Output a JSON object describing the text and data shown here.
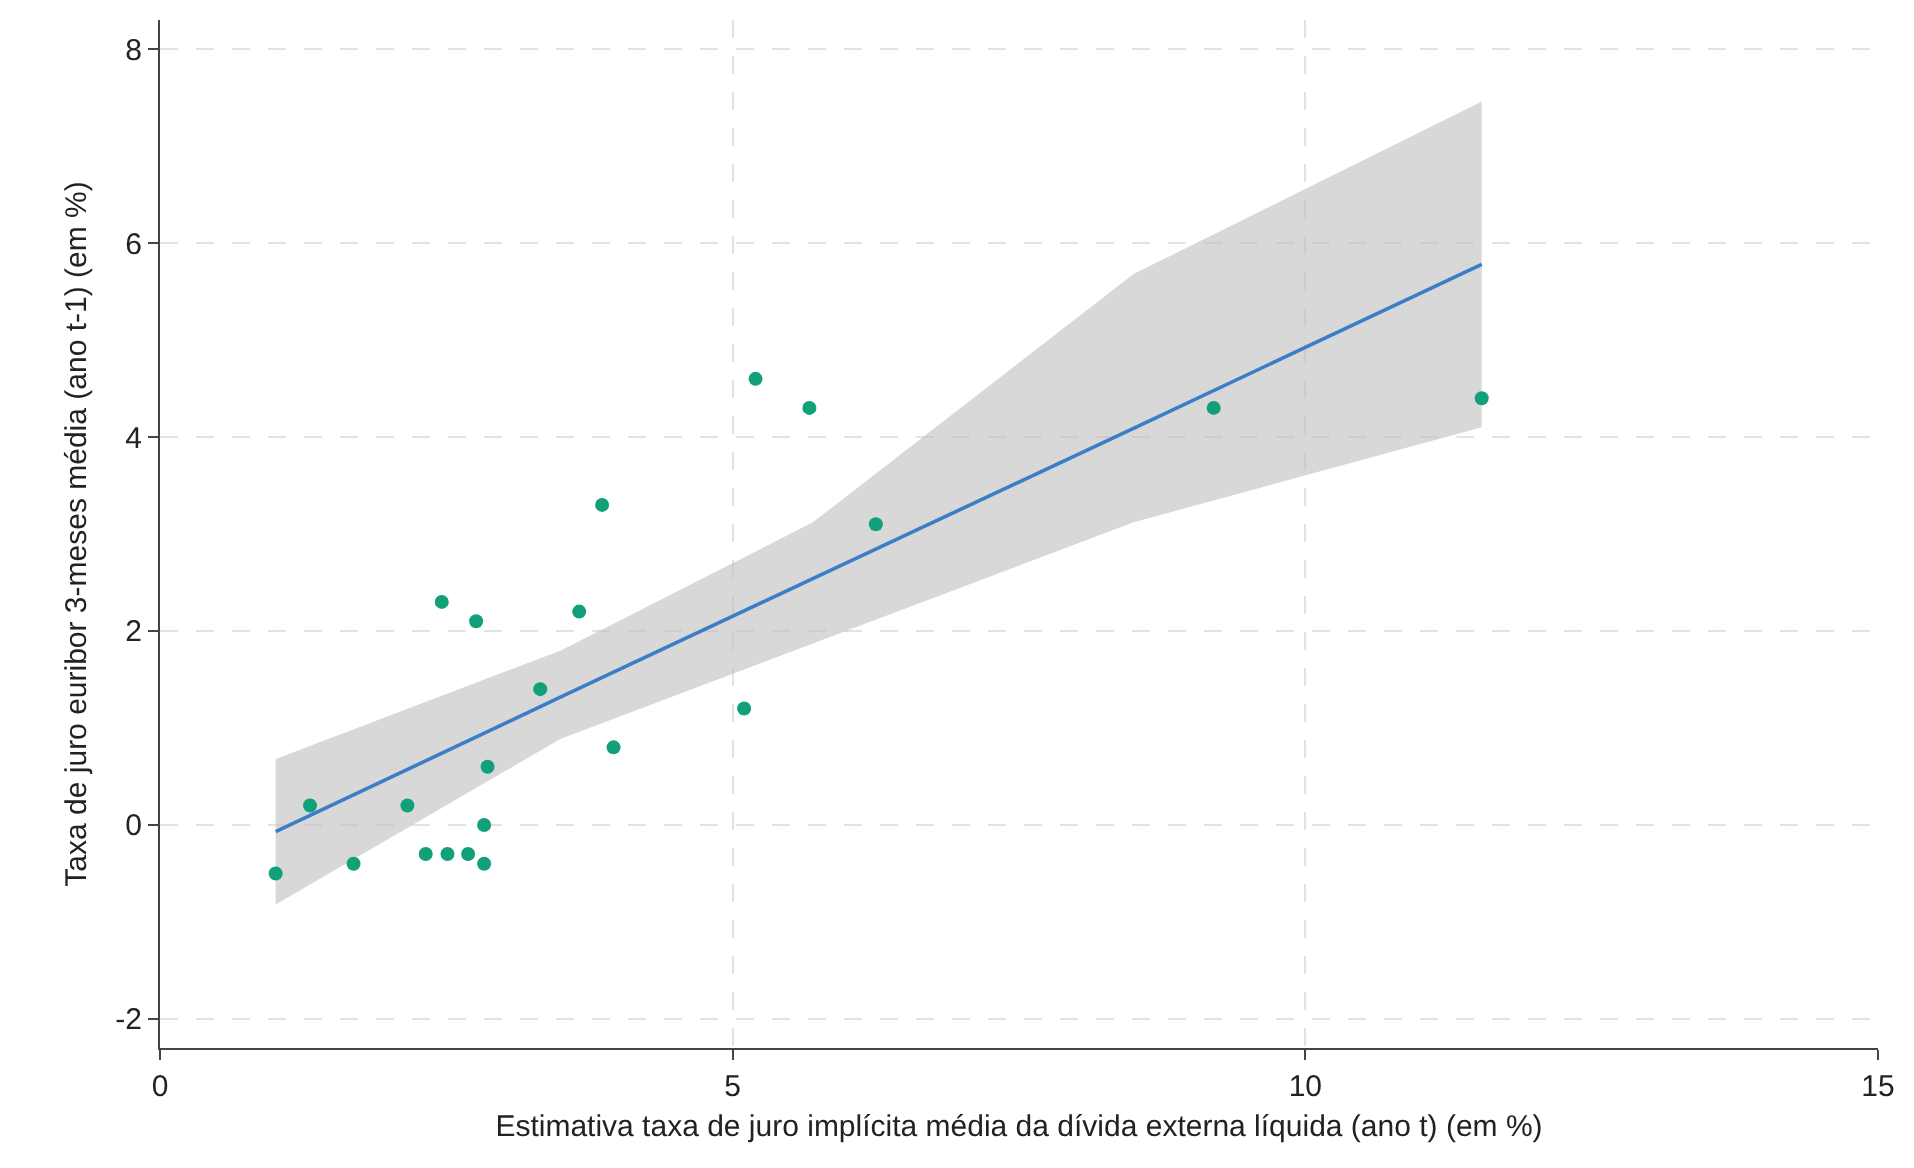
{
  "chart_data": {
    "type": "scatter",
    "xlabel": "Estimativa taxa de juro implícita média da dívida externa líquida (ano t) (em %)",
    "ylabel": "Taxa de juro euribor 3-meses média (ano t-1) (em %)",
    "xlim": [
      0,
      15
    ],
    "xticks": [
      0,
      5,
      10,
      15
    ],
    "ylim": [
      -2.3,
      8.3
    ],
    "yticks": [
      -2,
      0,
      2,
      4,
      6,
      8
    ],
    "grid": true,
    "series": [
      {
        "type": "line",
        "color": "#3a7dc9",
        "line_style": "solid",
        "x": [
          1.01,
          3.5,
          5.7,
          8.5,
          11.54
        ],
        "values": [
          -0.07,
          1.32,
          2.54,
          4.09,
          5.78
        ],
        "lower": [
          -0.82,
          0.89,
          1.87,
          3.12,
          4.1
        ],
        "upper": [
          0.68,
          1.8,
          3.12,
          5.68,
          7.46
        ]
      },
      {
        "marker": "circle",
        "color": "#12a07a",
        "x": [
          1.01,
          1.31,
          1.69,
          2.16,
          2.32,
          2.51,
          2.46,
          2.69,
          2.76,
          2.83,
          2.83,
          2.86,
          3.32,
          3.66,
          3.86,
          3.96,
          5.1,
          5.2,
          5.67,
          6.25,
          9.2,
          11.54
        ],
        "values": [
          -0.5,
          0.2,
          -0.4,
          0.2,
          -0.3,
          -0.3,
          2.3,
          -0.3,
          2.1,
          0.0,
          -0.4,
          0.6,
          1.4,
          2.2,
          3.3,
          0.8,
          1.2,
          4.6,
          4.3,
          3.1,
          4.3,
          4.4
        ]
      }
    ]
  }
}
